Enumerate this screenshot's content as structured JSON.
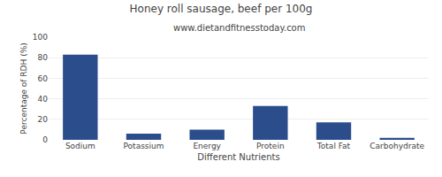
{
  "chart_data": {
    "type": "bar",
    "title": "Honey roll sausage, beef per 100g",
    "subtitle": "www.dietandfitnesstoday.com",
    "xlabel": "Different Nutrients",
    "ylabel": "Percentage of RDH (%)",
    "categories": [
      "Sodium",
      "Potassium",
      "Energy",
      "Protein",
      "Total Fat",
      "Carbohydrate"
    ],
    "values": [
      83,
      6,
      10,
      33,
      17,
      2
    ],
    "color": "#2b4d8c",
    "ylim": [
      0,
      100
    ],
    "yticks": [
      0,
      20,
      40,
      60,
      80,
      100
    ],
    "grid": true
  }
}
